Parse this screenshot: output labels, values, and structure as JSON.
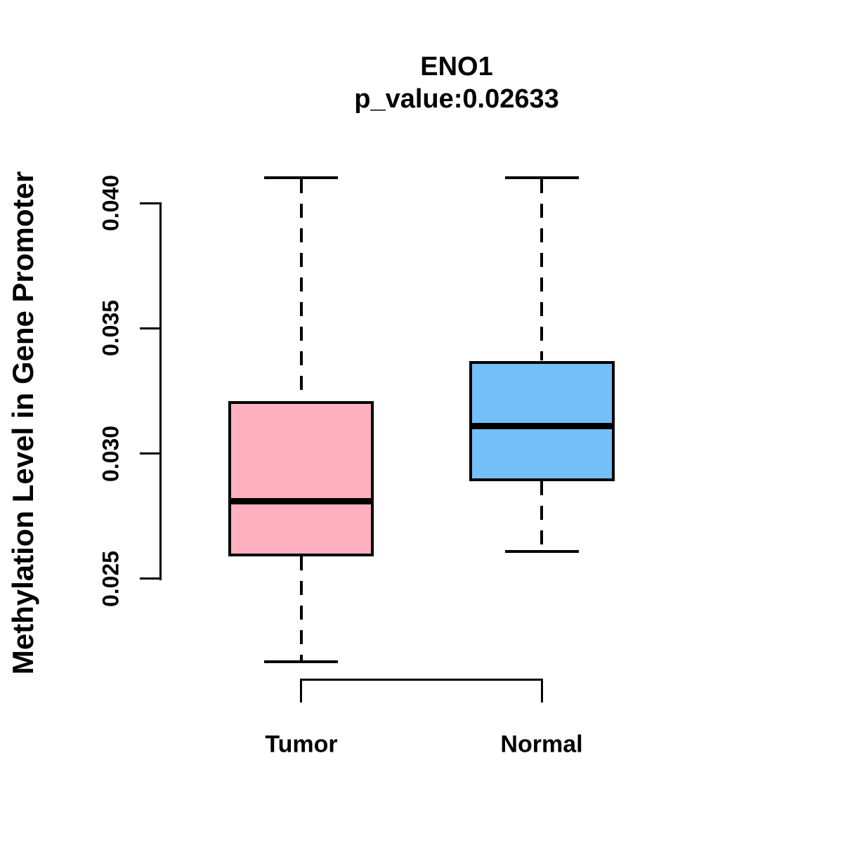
{
  "figure": {
    "title": "ENO1",
    "subtitle": "p_value:0.02633",
    "y_axis_label": "Methylation Level in Gene Promoter"
  },
  "chart_data": {
    "type": "boxplot",
    "title": "ENO1",
    "subtitle": "p_value:0.02633",
    "p_value": 0.02633,
    "ylabel": "Methylation Level in Gene Promoter",
    "xlabel": "",
    "categories": [
      "Tumor",
      "Normal"
    ],
    "ytick_values": [
      0.025,
      0.03,
      0.035,
      0.04
    ],
    "ytick_labels": [
      "0.025",
      "0.030",
      "0.035",
      "0.040"
    ],
    "ylim": [
      0.0213,
      0.0413
    ],
    "grid": false,
    "legend": "none",
    "outline_color": "#000000",
    "background_color": "#FFFFFF",
    "series": [
      {
        "name": "Tumor",
        "fill_color": "#FFB1C1",
        "whisker_low": 0.0217,
        "q1": 0.0259,
        "median": 0.0281,
        "q3": 0.0321,
        "whisker_high": 0.041
      },
      {
        "name": "Normal",
        "fill_color": "#74BFF7",
        "whisker_low": 0.0261,
        "q1": 0.0289,
        "median": 0.0311,
        "q3": 0.0337,
        "whisker_high": 0.041
      }
    ]
  }
}
